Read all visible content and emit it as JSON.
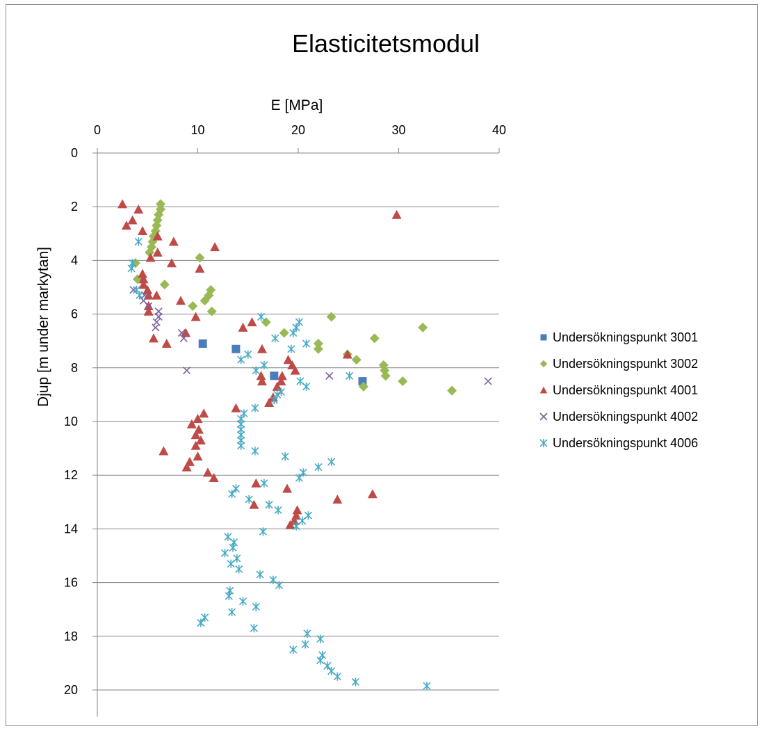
{
  "chart_data": {
    "type": "scatter",
    "title": "Elasticitetsmodul",
    "xlabel": "E [MPa]",
    "ylabel": "Djup [m under markytan]",
    "xlim": [
      0,
      40
    ],
    "ylim": [
      0,
      21
    ],
    "y_inverted": true,
    "x_axis_position": "top",
    "x_ticks": [
      "0",
      "10",
      "20",
      "30",
      "40"
    ],
    "y_ticks": [
      "0",
      "2",
      "4",
      "6",
      "8",
      "10",
      "12",
      "14",
      "16",
      "18",
      "20"
    ],
    "grid": "horizontal",
    "legend_position": "right",
    "series": [
      {
        "name": "Undersökningspunkt 3001",
        "marker": "square",
        "color": "#4a7ebb",
        "points": [
          [
            10.5,
            7.1
          ],
          [
            13.8,
            7.3
          ],
          [
            17.6,
            8.3
          ],
          [
            26.4,
            8.5
          ]
        ]
      },
      {
        "name": "Undersökningspunkt 3002",
        "marker": "diamond",
        "color": "#98b954",
        "points": [
          [
            6.3,
            1.9
          ],
          [
            6.3,
            2.1
          ],
          [
            6.1,
            2.3
          ],
          [
            6.0,
            2.5
          ],
          [
            5.9,
            2.7
          ],
          [
            5.8,
            2.9
          ],
          [
            5.6,
            3.1
          ],
          [
            5.5,
            3.3
          ],
          [
            5.4,
            3.5
          ],
          [
            5.2,
            3.7
          ],
          [
            10.2,
            3.9
          ],
          [
            3.8,
            4.1
          ],
          [
            4.0,
            4.7
          ],
          [
            6.7,
            4.9
          ],
          [
            11.3,
            5.1
          ],
          [
            11.1,
            5.3
          ],
          [
            10.7,
            5.5
          ],
          [
            9.5,
            5.7
          ],
          [
            11.4,
            5.9
          ],
          [
            23.3,
            6.1
          ],
          [
            16.8,
            6.3
          ],
          [
            32.4,
            6.5
          ],
          [
            18.6,
            6.7
          ],
          [
            27.6,
            6.9
          ],
          [
            22.0,
            7.1
          ],
          [
            22.0,
            7.3
          ],
          [
            24.9,
            7.5
          ],
          [
            25.8,
            7.7
          ],
          [
            28.5,
            7.9
          ],
          [
            28.6,
            8.1
          ],
          [
            28.7,
            8.3
          ],
          [
            30.4,
            8.5
          ],
          [
            26.5,
            8.7
          ],
          [
            35.3,
            8.85
          ]
        ]
      },
      {
        "name": "Undersökningspunkt 4001",
        "marker": "triangle",
        "color": "#be4b48",
        "points": [
          [
            2.5,
            1.9
          ],
          [
            4.1,
            2.1
          ],
          [
            29.8,
            2.3
          ],
          [
            3.5,
            2.5
          ],
          [
            2.9,
            2.7
          ],
          [
            4.5,
            2.9
          ],
          [
            6.0,
            3.1
          ],
          [
            7.6,
            3.3
          ],
          [
            11.7,
            3.5
          ],
          [
            6.0,
            3.7
          ],
          [
            5.3,
            3.9
          ],
          [
            7.4,
            4.1
          ],
          [
            10.2,
            4.3
          ],
          [
            4.5,
            4.5
          ],
          [
            4.6,
            4.7
          ],
          [
            4.6,
            4.9
          ],
          [
            5.0,
            5.1
          ],
          [
            5.1,
            5.3
          ],
          [
            5.9,
            5.3
          ],
          [
            8.3,
            5.5
          ],
          [
            5.1,
            5.7
          ],
          [
            5.1,
            5.9
          ],
          [
            9.8,
            6.1
          ],
          [
            15.4,
            6.3
          ],
          [
            14.5,
            6.5
          ],
          [
            8.8,
            6.7
          ],
          [
            5.6,
            6.9
          ],
          [
            6.9,
            7.1
          ],
          [
            16.4,
            7.3
          ],
          [
            24.9,
            7.5
          ],
          [
            19.0,
            7.7
          ],
          [
            19.4,
            7.9
          ],
          [
            19.7,
            8.1
          ],
          [
            16.3,
            8.3
          ],
          [
            16.4,
            8.5
          ],
          [
            18.4,
            8.3
          ],
          [
            18.3,
            8.5
          ],
          [
            17.9,
            8.7
          ],
          [
            17.5,
            9.1
          ],
          [
            17.1,
            9.3
          ],
          [
            13.8,
            9.5
          ],
          [
            10.6,
            9.7
          ],
          [
            10.0,
            9.9
          ],
          [
            9.4,
            10.1
          ],
          [
            10.1,
            10.3
          ],
          [
            9.8,
            10.5
          ],
          [
            10.3,
            10.7
          ],
          [
            9.8,
            10.9
          ],
          [
            6.6,
            11.1
          ],
          [
            10.0,
            11.3
          ],
          [
            9.2,
            11.5
          ],
          [
            8.9,
            11.7
          ],
          [
            11.0,
            11.9
          ],
          [
            11.6,
            12.1
          ],
          [
            15.8,
            12.3
          ],
          [
            18.9,
            12.5
          ],
          [
            27.4,
            12.7
          ],
          [
            23.9,
            12.9
          ],
          [
            15.6,
            13.1
          ],
          [
            19.9,
            13.3
          ],
          [
            19.8,
            13.5
          ],
          [
            19.6,
            13.7
          ],
          [
            19.2,
            13.85
          ]
        ]
      },
      {
        "name": "Undersökningspunkt 4002",
        "marker": "x",
        "color": "#7d60a0",
        "points": [
          [
            3.6,
            5.1
          ],
          [
            4.7,
            5.3
          ],
          [
            4.6,
            5.5
          ],
          [
            5.1,
            5.7
          ],
          [
            6.1,
            5.9
          ],
          [
            6.1,
            6.1
          ],
          [
            5.9,
            6.3
          ],
          [
            5.8,
            6.5
          ],
          [
            8.4,
            6.7
          ],
          [
            8.6,
            6.9
          ],
          [
            8.9,
            8.1
          ],
          [
            23.1,
            8.3
          ],
          [
            38.9,
            8.5
          ]
        ]
      },
      {
        "name": "Undersökningspunkt 4006",
        "marker": "asterisk",
        "color": "#46aac5",
        "points": [
          [
            4.1,
            3.3
          ],
          [
            3.5,
            4.1
          ],
          [
            3.4,
            4.3
          ],
          [
            3.9,
            5.1
          ],
          [
            4.2,
            5.3
          ],
          [
            16.3,
            6.1
          ],
          [
            20.1,
            6.3
          ],
          [
            19.8,
            6.5
          ],
          [
            19.5,
            6.7
          ],
          [
            17.7,
            6.9
          ],
          [
            20.8,
            7.1
          ],
          [
            19.3,
            7.3
          ],
          [
            15.0,
            7.5
          ],
          [
            14.3,
            7.7
          ],
          [
            16.6,
            7.9
          ],
          [
            25.1,
            8.3
          ],
          [
            15.8,
            8.1
          ],
          [
            20.2,
            8.5
          ],
          [
            20.8,
            8.7
          ],
          [
            18.3,
            8.9
          ],
          [
            17.9,
            9.0
          ],
          [
            17.6,
            9.2
          ],
          [
            15.7,
            9.5
          ],
          [
            14.6,
            9.7
          ],
          [
            14.3,
            9.9
          ],
          [
            14.3,
            10.1
          ],
          [
            14.3,
            10.3
          ],
          [
            14.3,
            10.5
          ],
          [
            14.3,
            10.7
          ],
          [
            14.3,
            10.9
          ],
          [
            15.7,
            11.1
          ],
          [
            18.7,
            11.3
          ],
          [
            23.3,
            11.5
          ],
          [
            22.0,
            11.7
          ],
          [
            20.5,
            11.9
          ],
          [
            20.1,
            12.1
          ],
          [
            16.6,
            12.3
          ],
          [
            13.8,
            12.5
          ],
          [
            13.4,
            12.7
          ],
          [
            15.1,
            12.9
          ],
          [
            17.1,
            13.1
          ],
          [
            18.0,
            13.3
          ],
          [
            21.0,
            13.5
          ],
          [
            20.4,
            13.7
          ],
          [
            19.8,
            13.9
          ],
          [
            16.5,
            14.1
          ],
          [
            13.0,
            14.3
          ],
          [
            13.6,
            14.5
          ],
          [
            13.5,
            14.7
          ],
          [
            12.7,
            14.9
          ],
          [
            13.9,
            15.1
          ],
          [
            13.3,
            15.3
          ],
          [
            14.1,
            15.5
          ],
          [
            16.2,
            15.7
          ],
          [
            17.5,
            15.9
          ],
          [
            18.1,
            16.1
          ],
          [
            13.2,
            16.3
          ],
          [
            13.1,
            16.5
          ],
          [
            14.5,
            16.7
          ],
          [
            15.8,
            16.9
          ],
          [
            13.4,
            17.1
          ],
          [
            10.7,
            17.3
          ],
          [
            10.3,
            17.5
          ],
          [
            15.6,
            17.7
          ],
          [
            20.9,
            17.9
          ],
          [
            22.2,
            18.1
          ],
          [
            20.7,
            18.3
          ],
          [
            19.5,
            18.5
          ],
          [
            22.4,
            18.7
          ],
          [
            22.2,
            18.9
          ],
          [
            22.9,
            19.1
          ],
          [
            23.3,
            19.3
          ],
          [
            23.9,
            19.5
          ],
          [
            25.7,
            19.7
          ],
          [
            32.8,
            19.85
          ]
        ]
      }
    ]
  }
}
